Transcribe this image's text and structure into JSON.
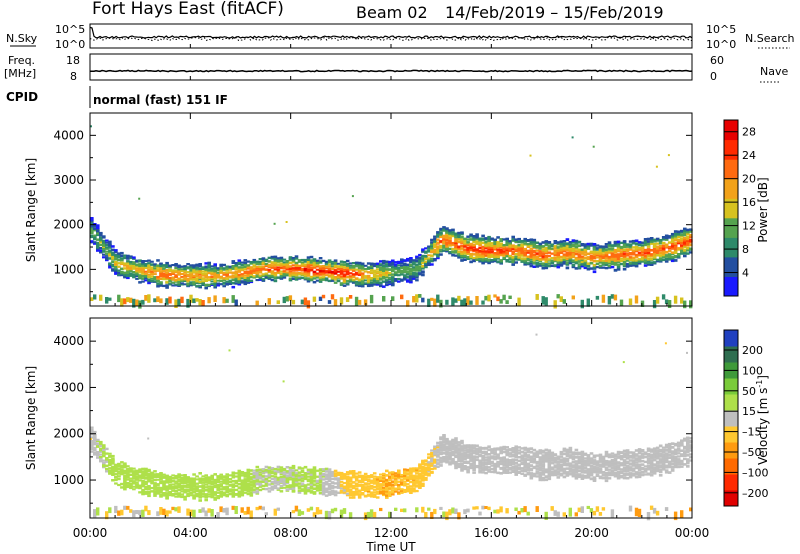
{
  "header": {
    "title": "Fort Hays East (fitACF)",
    "beam": "Beam 02",
    "date_range": "14/Feb/2019 – 15/Feb/2019"
  },
  "status_panels": {
    "nsky_label": "N.Sky",
    "nsearch_label": "N.Search",
    "freq_label_line1": "Freq.",
    "freq_label_line2": "[MHz]",
    "nave_label": "Nave",
    "cpid_label": "CPID",
    "cpid_text": "normal (fast) 151 IF",
    "noise_ticks_left": [
      "10^5",
      "10^0"
    ],
    "noise_ticks_right": [
      "10^5",
      "10^0"
    ],
    "freq_ticks": [
      "18",
      "8"
    ],
    "nave_ticks": [
      "60",
      "0"
    ]
  },
  "chart_data": [
    {
      "type": "heatmap",
      "title": "",
      "ylabel": "Slant Range [km]",
      "xlabel": "",
      "xlim": [
        "00:00",
        "00:00"
      ],
      "ylim": [
        180,
        4500
      ],
      "x_ticks": [
        "00:00",
        "04:00",
        "08:00",
        "12:00",
        "16:00",
        "20:00",
        "00:00"
      ],
      "y_ticks": [
        1000,
        2000,
        3000,
        4000
      ],
      "colorbar": {
        "label": "Power [dB]",
        "ticks": [
          "4",
          "8",
          "12",
          "16",
          "20",
          "24",
          "28"
        ],
        "range": [
          0,
          30
        ]
      },
      "echo_band": {
        "times_hr": [
          0,
          1,
          2,
          3,
          4,
          5,
          6,
          7,
          8,
          9,
          10,
          11,
          12,
          13,
          14,
          15,
          16,
          17,
          18,
          19,
          20,
          21,
          22,
          23,
          24
        ],
        "center_km": [
          1900,
          1150,
          1000,
          900,
          880,
          880,
          950,
          1050,
          1050,
          1000,
          950,
          900,
          950,
          1050,
          1700,
          1500,
          1450,
          1450,
          1350,
          1400,
          1300,
          1350,
          1400,
          1500,
          1700
        ],
        "peak_power_db": [
          12,
          16,
          20,
          24,
          22,
          20,
          22,
          24,
          26,
          28,
          28,
          22,
          14,
          12,
          24,
          26,
          26,
          24,
          24,
          22,
          22,
          24,
          24,
          24,
          26
        ]
      }
    },
    {
      "type": "heatmap",
      "title": "",
      "ylabel": "Slant Range [km]",
      "xlabel": "Time UT",
      "xlim": [
        "00:00",
        "00:00"
      ],
      "ylim": [
        180,
        4500
      ],
      "x_ticks": [
        "00:00",
        "04:00",
        "08:00",
        "12:00",
        "16:00",
        "20:00",
        "00:00"
      ],
      "y_ticks": [
        1000,
        2000,
        3000,
        4000
      ],
      "colorbar": {
        "label": "Velocity [m s^-1]",
        "ticks": [
          "200",
          "100",
          "50",
          "15",
          "–15",
          "–50",
          "–100",
          "–200"
        ],
        "range": [
          -250,
          250
        ]
      },
      "echo_band": {
        "times_hr": [
          0,
          1,
          2,
          3,
          4,
          5,
          6,
          7,
          8,
          9,
          10,
          11,
          12,
          13,
          14,
          15,
          16,
          17,
          18,
          19,
          20,
          21,
          22,
          23,
          24
        ],
        "center_km": [
          1900,
          1150,
          1000,
          900,
          880,
          880,
          950,
          1050,
          1050,
          1000,
          950,
          900,
          950,
          1050,
          1700,
          1500,
          1450,
          1450,
          1350,
          1400,
          1300,
          1350,
          1400,
          1500,
          1700
        ],
        "velocity_ms": [
          0,
          40,
          40,
          40,
          30,
          30,
          30,
          10,
          20,
          20,
          -20,
          -40,
          -50,
          -40,
          0,
          0,
          0,
          0,
          0,
          0,
          0,
          0,
          0,
          0,
          0
        ]
      }
    }
  ],
  "palette": {
    "power": [
      "#1a1aff",
      "#234fa0",
      "#2e8a6a",
      "#55a34f",
      "#d7c21f",
      "#f2a21a",
      "#ff6a10",
      "#ff2a00",
      "#e80000"
    ],
    "velocity_pos": [
      "#2040c0",
      "#2f6e50",
      "#3f9a3a",
      "#7acb3a",
      "#aee04a"
    ],
    "velocity_neg": [
      "#bfbfbf",
      "#ffc830",
      "#ff9b10",
      "#ff6a00",
      "#ff2a00",
      "#e00000"
    ]
  },
  "footer": {
    "xlabel": "Time UT"
  }
}
